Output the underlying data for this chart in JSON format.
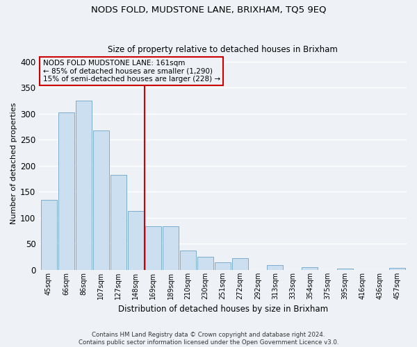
{
  "title": "NODS FOLD, MUDSTONE LANE, BRIXHAM, TQ5 9EQ",
  "subtitle": "Size of property relative to detached houses in Brixham",
  "xlabel": "Distribution of detached houses by size in Brixham",
  "ylabel": "Number of detached properties",
  "categories": [
    "45sqm",
    "66sqm",
    "86sqm",
    "107sqm",
    "127sqm",
    "148sqm",
    "169sqm",
    "189sqm",
    "210sqm",
    "230sqm",
    "251sqm",
    "272sqm",
    "292sqm",
    "313sqm",
    "333sqm",
    "354sqm",
    "375sqm",
    "395sqm",
    "416sqm",
    "436sqm",
    "457sqm"
  ],
  "values": [
    135,
    302,
    325,
    268,
    182,
    113,
    84,
    84,
    37,
    25,
    15,
    22,
    0,
    9,
    0,
    5,
    0,
    2,
    0,
    0,
    4
  ],
  "bar_color": "#ccdff0",
  "bar_edge_color": "#7aadcc",
  "marker_label_line1": "NODS FOLD MUDSTONE LANE: 161sqm",
  "marker_label_line2": "← 85% of detached houses are smaller (1,290)",
  "marker_label_line3": "15% of semi-detached houses are larger (228) →",
  "marker_color": "#cc0000",
  "ylim": [
    0,
    410
  ],
  "yticks": [
    0,
    50,
    100,
    150,
    200,
    250,
    300,
    350,
    400
  ],
  "footnote1": "Contains HM Land Registry data © Crown copyright and database right 2024.",
  "footnote2": "Contains public sector information licensed under the Open Government Licence v3.0.",
  "background_color": "#eef2f7",
  "grid_color": "#ffffff",
  "annotation_box_edge_color": "#cc0000"
}
